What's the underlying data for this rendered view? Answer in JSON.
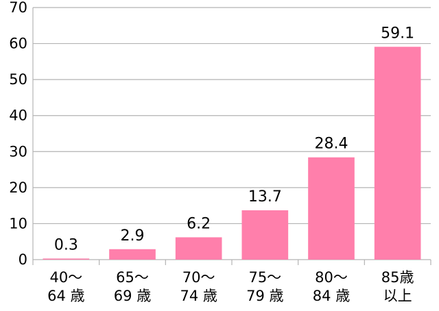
{
  "chart_data": {
    "type": "bar",
    "categories": [
      [
        "40～",
        "64 歳"
      ],
      [
        "65～",
        "69 歳"
      ],
      [
        "70～",
        "74 歳"
      ],
      [
        "75～",
        "79 歳"
      ],
      [
        "80～",
        "84 歳"
      ],
      [
        "85歳",
        "以上"
      ]
    ],
    "values": [
      0.3,
      2.9,
      6.2,
      13.7,
      28.4,
      59.1
    ],
    "data_labels": [
      "0.3",
      "2.9",
      "6.2",
      "13.7",
      "28.4",
      "59.1"
    ],
    "y_ticks": [
      0,
      10,
      20,
      30,
      40,
      50,
      60,
      70
    ],
    "ylim": [
      0,
      70
    ],
    "grid": true,
    "legend": "none",
    "bar_color": "#ff7fab",
    "grid_color": "#b3b3b3"
  }
}
